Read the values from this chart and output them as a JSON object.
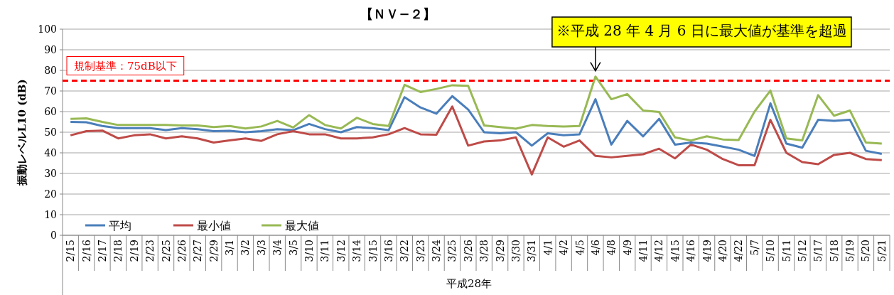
{
  "chart_data": {
    "type": "line",
    "title": "【ＮＶ−２】",
    "xlabel": "平成28年",
    "ylabel": "振動レベルL10 (dB)",
    "categories": [
      "2/15",
      "2/16",
      "2/17",
      "2/18",
      "2/19",
      "2/23",
      "2/25",
      "2/26",
      "2/27",
      "2/29",
      "3/1",
      "3/2",
      "3/3",
      "3/4",
      "3/5",
      "3/10",
      "3/11",
      "3/12",
      "3/14",
      "3/15",
      "3/16",
      "3/22",
      "3/23",
      "3/24",
      "3/25",
      "3/26",
      "3/28",
      "3/29",
      "3/30",
      "3/31",
      "4/1",
      "4/2",
      "4/5",
      "4/6",
      "4/8",
      "4/9",
      "4/11",
      "4/12",
      "4/15",
      "4/16",
      "4/19",
      "4/20",
      "4/22",
      "5/7",
      "5/10",
      "5/11",
      "5/12",
      "5/17",
      "5/18",
      "5/19",
      "5/20",
      "5/21"
    ],
    "series": [
      {
        "name": "平均",
        "color": "#4a7ebb",
        "values": [
          55,
          54.8,
          53,
          52,
          52,
          52,
          51,
          52,
          51.5,
          50.5,
          50.7,
          50,
          50.5,
          51.5,
          51,
          54,
          51.5,
          50,
          52.5,
          52,
          51,
          67,
          62,
          59,
          67.5,
          61,
          50,
          49.5,
          50,
          43.5,
          49.5,
          48.5,
          49,
          66,
          44,
          55.5,
          48,
          56.5,
          44,
          45,
          44.5,
          43,
          41.5,
          38.5,
          64,
          44.5,
          42.5,
          56,
          55.5,
          56,
          41,
          39.5
        ]
      },
      {
        "name": "最小値",
        "color": "#be4b48",
        "values": [
          48.5,
          50.5,
          50.8,
          47,
          48.5,
          49,
          47,
          48,
          47,
          45,
          46,
          47,
          45.8,
          49,
          50.5,
          49,
          49,
          47,
          47,
          47.5,
          49,
          52,
          49,
          48.8,
          62.5,
          43.5,
          45.5,
          46,
          47.5,
          29.5,
          47.5,
          43,
          46,
          38.5,
          37.8,
          38.5,
          39.3,
          42,
          37.3,
          44,
          41.5,
          37,
          34,
          34,
          56,
          40,
          35.5,
          34.5,
          39,
          40,
          37,
          36.5
        ]
      },
      {
        "name": "最大値",
        "color": "#98b954",
        "values": [
          56.5,
          56.7,
          55,
          53.5,
          53.5,
          53.5,
          53.5,
          53.3,
          53.3,
          52.5,
          53,
          51.8,
          52.8,
          55.5,
          52.3,
          58.3,
          53.5,
          51.8,
          57,
          54,
          53,
          73,
          69.5,
          71,
          72.8,
          72.5,
          53.3,
          52.5,
          51.7,
          53.5,
          53,
          52.8,
          53,
          77,
          66,
          68.5,
          60.5,
          59.8,
          47.5,
          46,
          48,
          46.5,
          46.2,
          60,
          70.2,
          47,
          46,
          68,
          58,
          60.5,
          45,
          44.5
        ]
      }
    ],
    "ylim": [
      0,
      100
    ],
    "yticks": [
      0,
      10,
      20,
      30,
      40,
      50,
      60,
      70,
      80,
      90,
      100
    ],
    "grid": "y",
    "legend": "bottom left",
    "line_style": "solid",
    "marker": "none",
    "ref_lines": [
      {
        "axis": "y",
        "value": 75,
        "label": "規制基準：75dB以下",
        "color": "#ff0000",
        "line_style": "dashed"
      }
    ],
    "annotations": [
      {
        "text": "※平成 28 年 4 月 6 日に最大値が基準を超過",
        "x": "4/6",
        "y": 77
      }
    ]
  }
}
